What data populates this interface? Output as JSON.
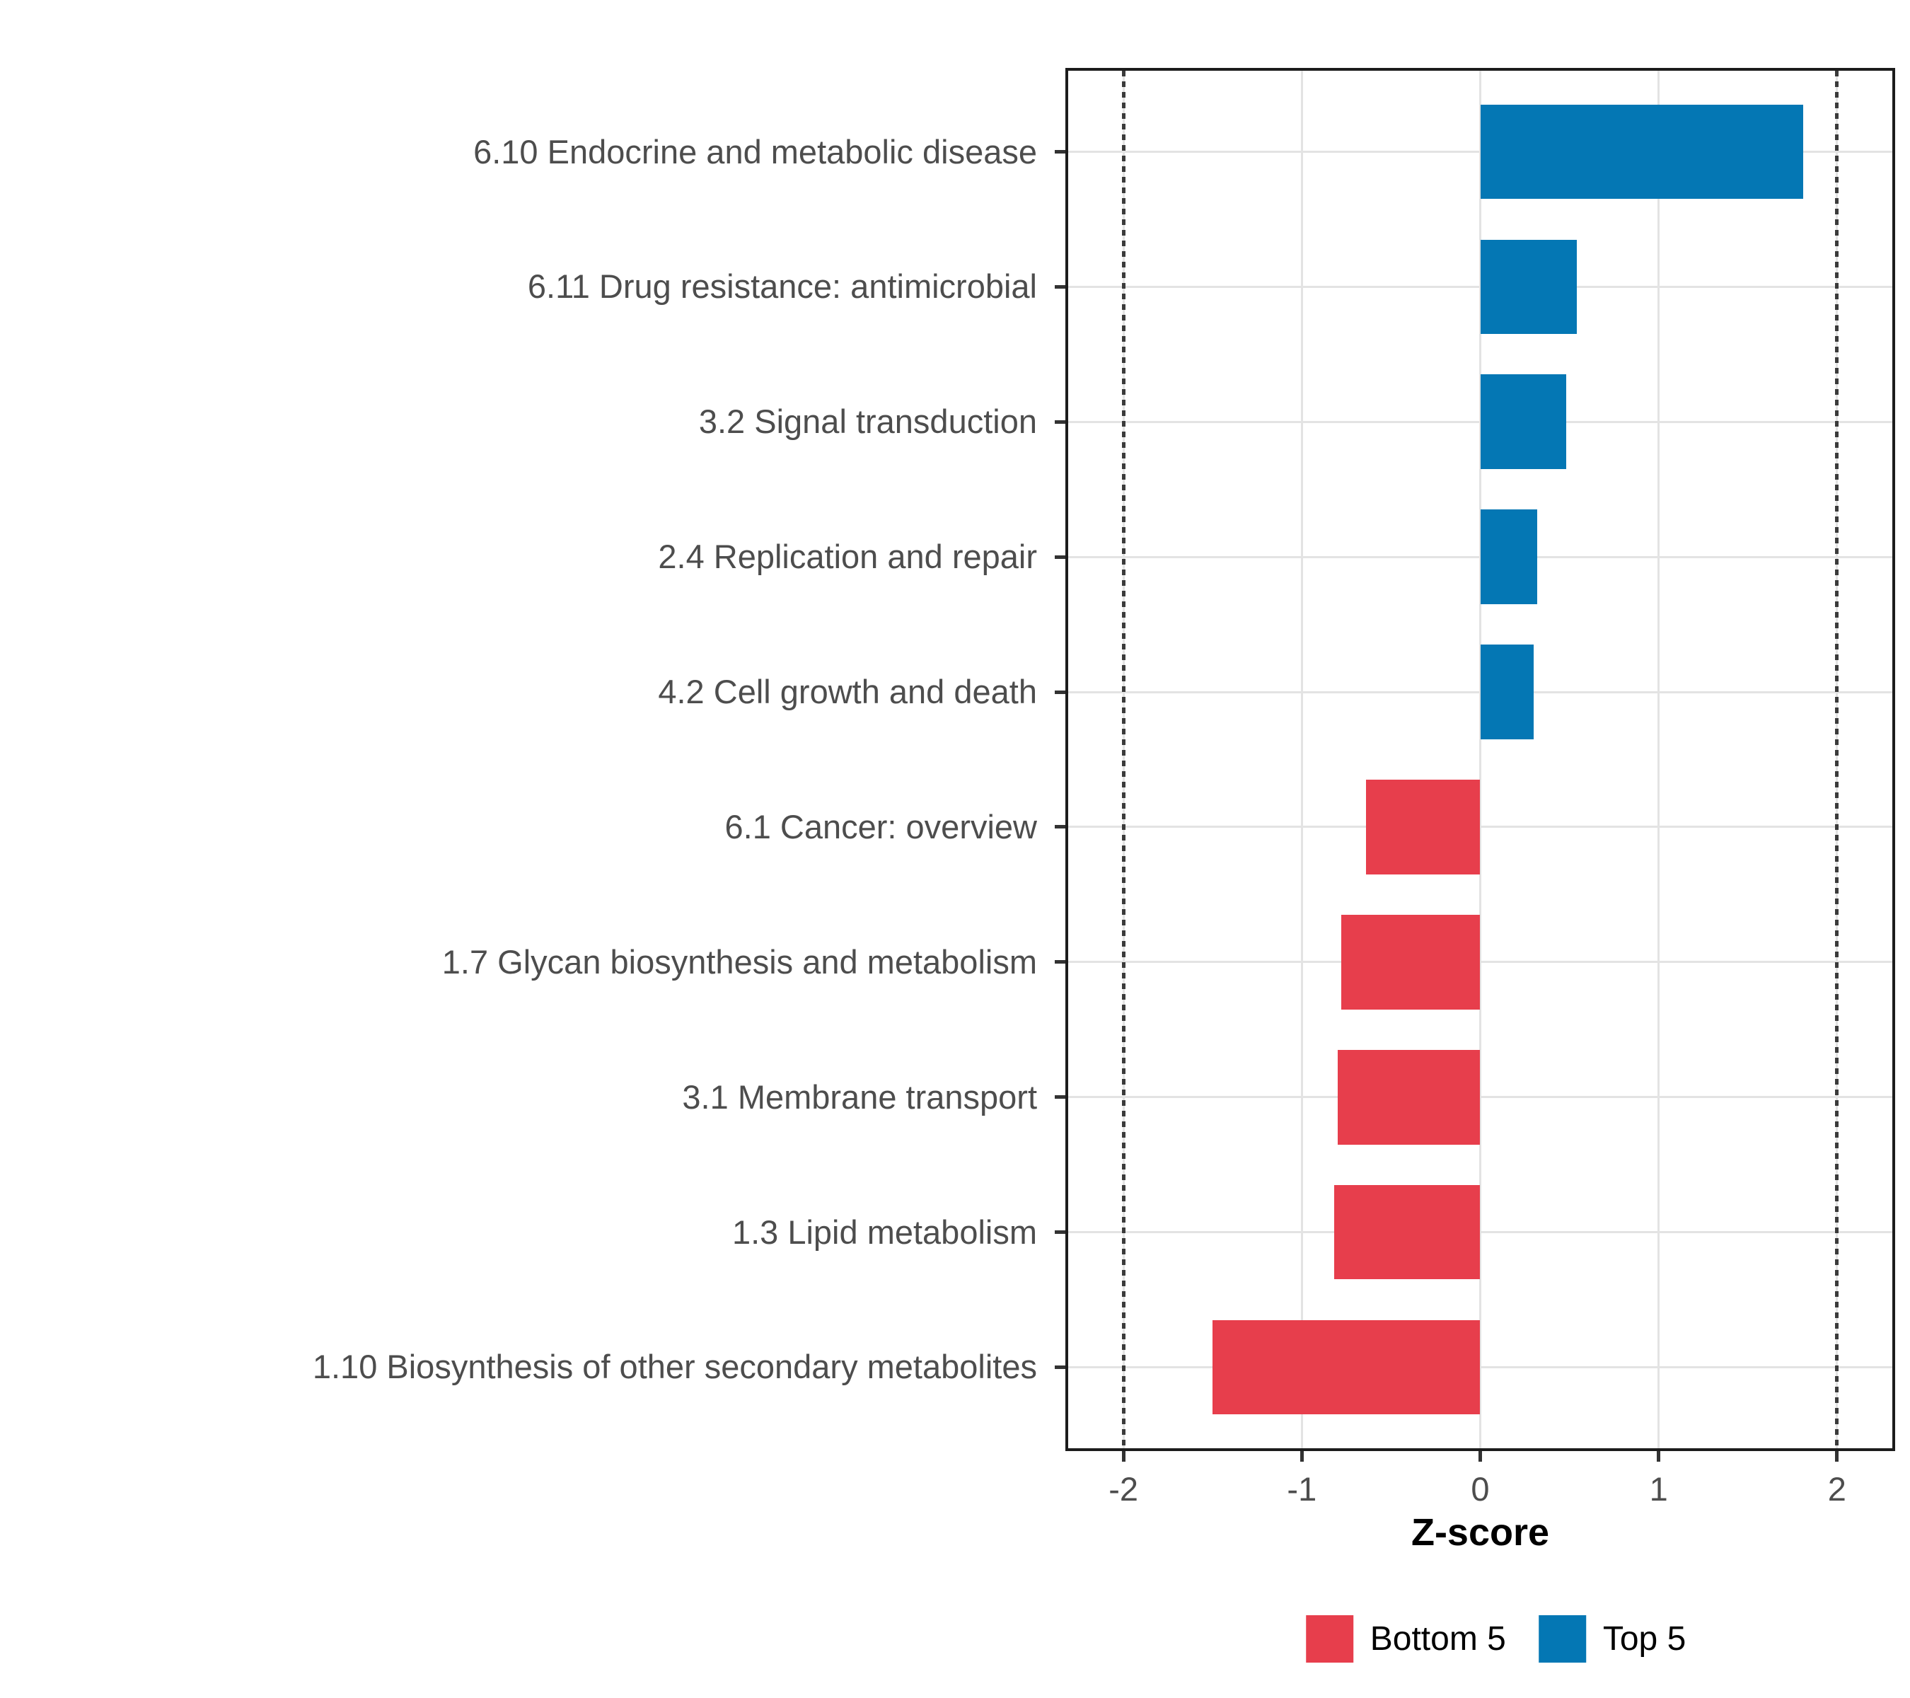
{
  "chart_data": {
    "type": "bar",
    "orientation": "horizontal",
    "xlabel": "Z-score",
    "ylabel": "",
    "xlim": [
      -2.31,
      2.31
    ],
    "x_ticks": [
      -2,
      -1,
      0,
      1,
      2
    ],
    "reference_lines": [
      -2,
      2
    ],
    "grid": "major only, light gray on white panel, black panel border",
    "legend_position": "bottom",
    "categories": [
      "6.10 Endocrine and metabolic disease",
      "6.11 Drug resistance: antimicrobial",
      "3.2 Signal transduction",
      "2.4 Replication and repair",
      "4.2 Cell growth and death",
      "6.1 Cancer: overview",
      "1.7 Glycan biosynthesis and metabolism",
      "3.1 Membrane transport",
      "1.3 Lipid metabolism",
      "1.10 Biosynthesis of other secondary metabolites"
    ],
    "series": [
      {
        "name": "Z-score",
        "values": [
          1.81,
          0.54,
          0.48,
          0.32,
          0.3,
          -0.64,
          -0.78,
          -0.8,
          -0.82,
          -1.5
        ]
      }
    ],
    "group_of_bar": [
      "Top 5",
      "Top 5",
      "Top 5",
      "Top 5",
      "Top 5",
      "Bottom 5",
      "Bottom 5",
      "Bottom 5",
      "Bottom 5",
      "Bottom 5"
    ],
    "colors": {
      "Bottom 5": "#E73E4C",
      "Top 5": "#0477B4"
    },
    "legend_entries": [
      {
        "label": "Bottom 5",
        "color": "#E73E4C"
      },
      {
        "label": "Top 5",
        "color": "#0477B4"
      }
    ]
  }
}
